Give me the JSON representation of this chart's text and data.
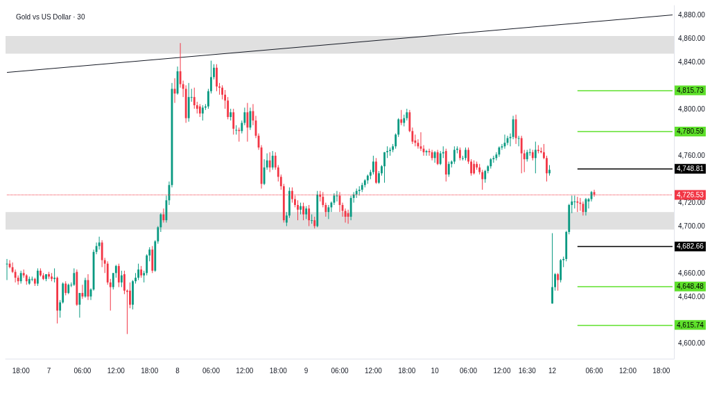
{
  "chart_data": {
    "type": "candlestick",
    "title": "Gold vs US Dollar · 30",
    "categories": [
      null,
      null,
      null,
      null,
      null,
      "18:00",
      null,
      null,
      null,
      null,
      null,
      null,
      null,
      null,
      null,
      "7",
      null,
      null,
      null,
      null,
      null,
      null,
      null,
      null,
      null,
      null,
      null,
      "06:00",
      null,
      null,
      null,
      null,
      null,
      null,
      null,
      null,
      null,
      null,
      null,
      "12:00",
      null,
      null,
      null,
      null,
      null,
      null,
      null,
      null,
      null,
      null,
      null,
      "18:00",
      null,
      null,
      null,
      null,
      null,
      null,
      null,
      null,
      null,
      "8",
      null,
      null,
      null,
      null,
      null,
      null,
      null,
      null,
      null,
      null,
      null,
      "06:00",
      null,
      null,
      null,
      null,
      null,
      null,
      null,
      null,
      null,
      null,
      null,
      "12:00",
      null,
      null,
      null,
      null,
      null,
      null,
      null,
      null,
      null,
      null,
      null,
      "18:00",
      null,
      null,
      null,
      null,
      null,
      null,
      null,
      null,
      null,
      "9",
      null,
      null,
      null,
      null,
      null,
      null,
      null,
      null,
      null,
      null,
      null,
      "06:00",
      null,
      null,
      null,
      null,
      null,
      null,
      null,
      null,
      null,
      null,
      null,
      "12:00",
      null,
      null,
      null,
      null,
      null,
      null,
      null,
      null,
      null,
      null,
      null,
      "18:00",
      null,
      null,
      null,
      null,
      null,
      null,
      null,
      null,
      null,
      "10",
      null,
      null,
      null,
      null,
      null,
      null,
      null,
      null,
      null,
      null,
      null,
      "06:00",
      null,
      null,
      null,
      null,
      null,
      null,
      null,
      null,
      null,
      null,
      null,
      "12:00",
      null,
      null,
      null,
      null,
      null,
      null,
      null,
      null,
      "16:30",
      null,
      null,
      null,
      null,
      null,
      null,
      null,
      null,
      "12",
      null,
      null,
      null,
      null,
      null,
      null,
      null,
      null,
      null,
      null,
      null,
      null,
      null,
      null,
      "06:00",
      null,
      null,
      null,
      null,
      null,
      null,
      null,
      null,
      null,
      null,
      null,
      "12:00",
      null,
      null,
      null,
      null,
      null,
      null,
      null,
      null,
      null,
      null,
      null,
      "18:00",
      null,
      null,
      null,
      null
    ],
    "ohlc": [
      [
        4668,
        4672,
        4654,
        4668
      ],
      [
        4668,
        4671,
        4664,
        4665
      ],
      [
        4665,
        4669,
        4660,
        4661
      ],
      [
        4661,
        4663,
        4652,
        4656
      ],
      [
        4656,
        4658,
        4650,
        4653
      ],
      [
        4653,
        4662,
        4651,
        4660
      ],
      [
        4660,
        4663,
        4656,
        4658
      ],
      [
        4658,
        4659,
        4650,
        4653
      ],
      [
        4651,
        4657,
        4650,
        4655
      ],
      [
        4655,
        4657,
        4653,
        4655
      ],
      [
        4655,
        4656,
        4649,
        4651
      ],
      [
        4651,
        4664,
        4649,
        4662
      ],
      [
        4662,
        4664,
        4657,
        4658
      ],
      [
        4658,
        4660,
        4654,
        4655
      ],
      [
        4655,
        4659,
        4653,
        4659
      ],
      [
        4659,
        4661,
        4655,
        4657
      ],
      [
        4657,
        4660,
        4653,
        4655
      ],
      [
        4655,
        4664,
        4652,
        4656
      ],
      [
        4656,
        4657,
        4617,
        4628
      ],
      [
        4628,
        4637,
        4622,
        4635
      ],
      [
        4635,
        4652,
        4634,
        4651
      ],
      [
        4651,
        4653,
        4641,
        4643
      ],
      [
        4643,
        4651,
        4642,
        4650
      ],
      [
        4650,
        4652,
        4648,
        4650
      ],
      [
        4650,
        4664,
        4649,
        4660
      ],
      [
        4661,
        4663,
        4632,
        4633
      ],
      [
        4633,
        4643,
        4622,
        4643
      ],
      [
        4643,
        4650,
        4638,
        4640
      ],
      [
        4640,
        4656,
        4639,
        4654
      ],
      [
        4654,
        4659,
        4637,
        4640
      ],
      [
        4640,
        4647,
        4637,
        4646
      ],
      [
        4646,
        4680,
        4645,
        4678
      ],
      [
        4678,
        4686,
        4676,
        4683
      ],
      [
        4683,
        4691,
        4680,
        4686
      ],
      [
        4686,
        4688,
        4665,
        4671
      ],
      [
        4671,
        4673,
        4660,
        4668
      ],
      [
        4668,
        4670,
        4650,
        4652
      ],
      [
        4652,
        4655,
        4628,
        4648
      ],
      [
        4648,
        4660,
        4646,
        4660
      ],
      [
        4660,
        4667,
        4656,
        4666
      ],
      [
        4666,
        4668,
        4648,
        4652
      ],
      [
        4652,
        4662,
        4648,
        4658
      ],
      [
        4659,
        4662,
        4642,
        4645
      ],
      [
        4645,
        4646,
        4608,
        4644
      ],
      [
        4645,
        4652,
        4630,
        4633
      ],
      [
        4633,
        4654,
        4629,
        4653
      ],
      [
        4653,
        4660,
        4651,
        4656
      ],
      [
        4656,
        4668,
        4654,
        4663
      ],
      [
        4663,
        4666,
        4656,
        4658
      ],
      [
        4658,
        4662,
        4652,
        4660
      ],
      [
        4660,
        4676,
        4658,
        4675
      ],
      [
        4675,
        4682,
        4670,
        4680
      ],
      [
        4680,
        4683,
        4660,
        4662
      ],
      [
        4662,
        4688,
        4661,
        4687
      ],
      [
        4687,
        4700,
        4685,
        4699
      ],
      [
        4699,
        4711,
        4695,
        4710
      ],
      [
        4710,
        4715,
        4703,
        4705
      ],
      [
        4705,
        4726,
        4703,
        4722
      ],
      [
        4722,
        4738,
        4718,
        4735
      ],
      [
        4735,
        4822,
        4733,
        4817
      ],
      [
        4817,
        4826,
        4805,
        4813
      ],
      [
        4813,
        4836,
        4812,
        4832
      ],
      [
        4832,
        4856,
        4818,
        4821
      ],
      [
        4821,
        4824,
        4810,
        4817
      ],
      [
        4817,
        4820,
        4788,
        4792
      ],
      [
        4792,
        4822,
        4789,
        4810
      ],
      [
        4810,
        4817,
        4806,
        4810
      ],
      [
        4810,
        4818,
        4800,
        4803
      ],
      [
        4803,
        4806,
        4796,
        4800
      ],
      [
        4802,
        4804,
        4793,
        4796
      ],
      [
        4796,
        4803,
        4790,
        4801
      ],
      [
        4801,
        4804,
        4799,
        4802
      ],
      [
        4802,
        4817,
        4800,
        4815
      ],
      [
        4815,
        4841,
        4813,
        4827
      ],
      [
        4827,
        4838,
        4825,
        4835
      ],
      [
        4835,
        4838,
        4815,
        4819
      ],
      [
        4819,
        4822,
        4812,
        4818
      ],
      [
        4818,
        4820,
        4808,
        4812
      ],
      [
        4812,
        4816,
        4800,
        4807
      ],
      [
        4807,
        4810,
        4791,
        4793
      ],
      [
        4793,
        4800,
        4790,
        4797
      ],
      [
        4797,
        4800,
        4778,
        4783
      ],
      [
        4782,
        4786,
        4778,
        4782
      ],
      [
        4782,
        4784,
        4772,
        4781
      ],
      [
        4781,
        4790,
        4779,
        4788
      ],
      [
        4788,
        4801,
        4786,
        4797
      ],
      [
        4797,
        4805,
        4772,
        4784
      ],
      [
        4784,
        4801,
        4782,
        4798
      ],
      [
        4798,
        4804,
        4786,
        4790
      ],
      [
        4790,
        4794,
        4775,
        4777
      ],
      [
        4777,
        4779,
        4765,
        4767
      ],
      [
        4767,
        4769,
        4732,
        4736
      ],
      [
        4736,
        4757,
        4735,
        4750
      ],
      [
        4750,
        4762,
        4748,
        4756
      ],
      [
        4756,
        4763,
        4746,
        4750
      ],
      [
        4750,
        4764,
        4748,
        4760
      ],
      [
        4760,
        4763,
        4748,
        4750
      ],
      [
        4750,
        4752,
        4738,
        4742
      ],
      [
        4742,
        4744,
        4731,
        4734
      ],
      [
        4734,
        4736,
        4703,
        4705
      ],
      [
        4703,
        4712,
        4700,
        4709
      ],
      [
        4709,
        4733,
        4707,
        4730
      ],
      [
        4730,
        4733,
        4720,
        4723
      ],
      [
        4723,
        4726,
        4716,
        4718
      ],
      [
        4718,
        4722,
        4705,
        4714
      ],
      [
        4714,
        4720,
        4710,
        4717
      ],
      [
        4717,
        4720,
        4705,
        4710
      ],
      [
        4710,
        4717,
        4706,
        4715
      ],
      [
        4715,
        4718,
        4700,
        4705
      ],
      [
        4705,
        4710,
        4702,
        4705
      ],
      [
        4705,
        4708,
        4698,
        4700
      ],
      [
        4700,
        4730,
        4699,
        4727
      ],
      [
        4727,
        4730,
        4721,
        4725
      ],
      [
        4725,
        4729,
        4716,
        4718
      ],
      [
        4718,
        4720,
        4708,
        4712
      ],
      [
        4712,
        4718,
        4706,
        4716
      ],
      [
        4716,
        4721,
        4712,
        4720
      ],
      [
        4720,
        4728,
        4718,
        4726
      ],
      [
        4726,
        4730,
        4721,
        4726
      ],
      [
        4726,
        4729,
        4712,
        4718
      ],
      [
        4718,
        4720,
        4708,
        4713
      ],
      [
        4713,
        4715,
        4703,
        4708
      ],
      [
        4711,
        4714,
        4702,
        4708
      ],
      [
        4708,
        4726,
        4705,
        4724
      ],
      [
        4724,
        4729,
        4720,
        4727
      ],
      [
        4727,
        4732,
        4724,
        4730
      ],
      [
        4730,
        4734,
        4726,
        4731
      ],
      [
        4731,
        4737,
        4729,
        4735
      ],
      [
        4735,
        4740,
        4733,
        4739
      ],
      [
        4739,
        4744,
        4736,
        4743
      ],
      [
        4743,
        4748,
        4740,
        4746
      ],
      [
        4746,
        4760,
        4744,
        4755
      ],
      [
        4755,
        4758,
        4736,
        4737
      ],
      [
        4737,
        4747,
        4736,
        4745
      ],
      [
        4745,
        4752,
        4743,
        4751
      ],
      [
        4751,
        4763,
        4737,
        4763
      ],
      [
        4763,
        4768,
        4758,
        4764
      ],
      [
        4764,
        4767,
        4760,
        4765
      ],
      [
        4765,
        4770,
        4763,
        4768
      ],
      [
        4768,
        4779,
        4766,
        4778
      ],
      [
        4778,
        4792,
        4776,
        4791
      ],
      [
        4791,
        4799,
        4786,
        4788
      ],
      [
        4788,
        4795,
        4785,
        4792
      ],
      [
        4792,
        4800,
        4790,
        4797
      ],
      [
        4797,
        4799,
        4780,
        4781
      ],
      [
        4781,
        4784,
        4770,
        4772
      ],
      [
        4773,
        4778,
        4768,
        4771
      ],
      [
        4771,
        4774,
        4766,
        4768
      ],
      [
        4768,
        4780,
        4764,
        4766
      ],
      [
        4766,
        4769,
        4760,
        4763
      ],
      [
        4763,
        4765,
        4760,
        4764
      ],
      [
        4764,
        4766,
        4760,
        4763
      ],
      [
        4763,
        4765,
        4756,
        4758
      ],
      [
        4758,
        4764,
        4754,
        4763
      ],
      [
        4763,
        4765,
        4752,
        4753
      ],
      [
        4753,
        4764,
        4752,
        4762
      ],
      [
        4762,
        4768,
        4758,
        4763
      ],
      [
        4764,
        4766,
        4738,
        4744
      ],
      [
        4744,
        4755,
        4742,
        4753
      ],
      [
        4753,
        4756,
        4750,
        4755
      ],
      [
        4755,
        4768,
        4753,
        4765
      ],
      [
        4765,
        4768,
        4762,
        4766
      ],
      [
        4765,
        4767,
        4756,
        4758
      ],
      [
        4758,
        4760,
        4756,
        4758
      ],
      [
        4758,
        4767,
        4756,
        4765
      ],
      [
        4765,
        4767,
        4753,
        4755
      ],
      [
        4755,
        4757,
        4743,
        4745
      ],
      [
        4753,
        4756,
        4744,
        4745
      ],
      [
        4753,
        4755,
        4748,
        4750
      ],
      [
        4750,
        4753,
        4744,
        4746
      ],
      [
        4746,
        4748,
        4731,
        4740
      ],
      [
        4740,
        4748,
        4737,
        4747
      ],
      [
        4747,
        4752,
        4745,
        4751
      ],
      [
        4751,
        4758,
        4749,
        4757
      ],
      [
        4757,
        4760,
        4754,
        4758
      ],
      [
        4758,
        4763,
        4756,
        4761
      ],
      [
        4761,
        4768,
        4759,
        4767
      ],
      [
        4767,
        4770,
        4765,
        4768
      ],
      [
        4768,
        4778,
        4766,
        4771
      ],
      [
        4771,
        4777,
        4769,
        4775
      ],
      [
        4775,
        4779,
        4768,
        4776
      ],
      [
        4776,
        4794,
        4774,
        4791
      ],
      [
        4791,
        4795,
        4770,
        4775
      ],
      [
        4775,
        4777,
        4768,
        4775
      ],
      [
        4775,
        4777,
        4745,
        4762
      ],
      [
        4762,
        4765,
        4746,
        4757
      ],
      [
        4757,
        4765,
        4755,
        4763
      ],
      [
        4763,
        4766,
        4760,
        4763
      ],
      [
        4763,
        4765,
        4756,
        4758
      ],
      [
        4758,
        4772,
        4745,
        4765
      ],
      [
        4765,
        4769,
        4762,
        4764
      ],
      [
        4764,
        4767,
        4762,
        4763
      ],
      [
        4763,
        4770,
        4757,
        4758
      ],
      [
        4758,
        4760,
        4738,
        4745
      ],
      [
        4745,
        4752,
        4743,
        4748
      ],
      [
        4634,
        4694,
        4634,
        4648
      ],
      [
        4648,
        4660,
        4645,
        4659
      ],
      [
        4659,
        4660,
        4645,
        4654
      ],
      [
        4654,
        4672,
        4652,
        4671
      ],
      [
        4671,
        4674,
        4665,
        4672
      ],
      [
        4672,
        4696,
        4670,
        4695
      ],
      [
        4695,
        4719,
        4693,
        4718
      ],
      [
        4718,
        4726,
        4711,
        4721
      ],
      [
        4721,
        4726,
        4715,
        4721
      ],
      [
        4721,
        4725,
        4712,
        4720
      ],
      [
        4720,
        4724,
        4713,
        4719
      ],
      [
        4719,
        4721,
        4709,
        4712
      ],
      [
        4712,
        4724,
        4709,
        4723
      ],
      [
        4721,
        4724,
        4715,
        4723
      ],
      [
        4723,
        4730,
        4721,
        4729
      ],
      [
        4729,
        4731,
        4725,
        4727
      ],
      null,
      null,
      null,
      null,
      null,
      null,
      null,
      null,
      null,
      null,
      null,
      null,
      null,
      null,
      null,
      null,
      null,
      null,
      null,
      null,
      null,
      null,
      null,
      null,
      null,
      null,
      null,
      null
    ],
    "series": [
      {
        "type": "line",
        "color": "#131722",
        "values": [
          4831,
          null,
          null,
          null,
          null,
          null,
          null,
          null,
          null,
          null,
          null,
          null,
          null,
          null,
          null,
          null,
          null,
          null,
          null,
          null,
          null,
          null,
          null,
          null,
          null,
          null,
          null,
          null,
          null,
          null,
          null,
          null,
          null,
          null,
          null,
          null,
          null,
          null,
          null,
          null,
          null,
          null,
          null,
          null,
          null,
          null,
          null,
          null,
          null,
          null,
          null,
          null,
          null,
          null,
          null,
          null,
          null,
          null,
          null,
          null,
          null,
          null,
          null,
          null,
          null,
          null,
          null,
          null,
          null,
          null,
          null,
          null,
          null,
          null,
          null,
          null,
          null,
          null,
          null,
          null,
          null,
          null,
          null,
          null,
          null,
          null,
          null,
          null,
          null,
          null,
          null,
          null,
          null,
          null,
          null,
          null,
          null,
          null,
          null,
          null,
          null,
          null,
          null,
          null,
          null,
          null,
          null,
          null,
          null,
          null,
          null,
          null,
          null,
          null,
          null,
          null,
          null,
          null,
          null,
          null,
          null,
          null,
          null,
          null,
          null,
          null,
          null,
          null,
          null,
          null,
          null,
          null,
          null,
          null,
          null,
          null,
          null,
          null,
          null,
          null,
          null,
          null,
          null,
          null,
          null,
          null,
          null,
          null,
          null,
          null,
          null,
          null,
          null,
          null,
          null,
          null,
          null,
          null,
          null,
          null,
          null,
          null,
          null,
          null,
          null,
          null,
          null,
          null,
          null,
          null,
          null,
          null,
          null,
          null,
          null,
          null,
          null,
          null,
          null,
          null,
          null,
          null,
          null,
          null,
          null,
          null,
          null,
          null,
          null,
          null,
          null,
          null,
          null,
          null,
          null,
          null,
          null,
          null,
          null,
          null,
          null,
          null,
          null,
          null,
          null,
          null,
          null,
          null,
          null,
          null,
          null,
          null,
          null,
          null,
          null,
          null,
          null,
          null,
          null,
          null,
          null,
          null,
          null,
          null,
          null,
          null,
          null,
          null,
          null,
          null,
          null,
          null,
          null,
          null,
          null,
          null,
          null,
          null,
          4880
        ]
      }
    ],
    "ylim": [
      4587,
      4888
    ],
    "yticks": [
      {
        "value": 4600,
        "label": "4,600.00"
      },
      {
        "value": 4640,
        "label": "4,640.00"
      },
      {
        "value": 4660,
        "label": "4,660.00"
      },
      {
        "value": 4700,
        "label": "4,700.00"
      },
      {
        "value": 4720,
        "label": "4,720.00"
      },
      {
        "value": 4760,
        "label": "4,760.00"
      },
      {
        "value": 4800,
        "label": "4,800.00"
      },
      {
        "value": 4840,
        "label": "4,840.00"
      },
      {
        "value": 4860,
        "label": "4,860.00"
      },
      {
        "value": 4880,
        "label": "4,880.00"
      }
    ],
    "ref_lines": [
      {
        "axis": "y",
        "value": 4815.73,
        "label": "4,815.73",
        "color": "#5ee02b"
      },
      {
        "axis": "y",
        "value": 4780.59,
        "label": "4,780.59",
        "color": "#5ee02b"
      },
      {
        "axis": "y",
        "value": 4748.81,
        "label": "4,748.81",
        "color": "#000000"
      },
      {
        "axis": "y",
        "value": 4726.53,
        "label": "4,726.53",
        "color": "#f23645",
        "line_style": "dotted"
      },
      {
        "axis": "y",
        "value": 4682.66,
        "label": "4,682.66",
        "color": "#000000"
      },
      {
        "axis": "y",
        "value": 4648.48,
        "label": "4,648.48",
        "color": "#5ee02b"
      },
      {
        "axis": "y",
        "value": 4615.74,
        "label": "4,615.74",
        "color": "#5ee02b"
      }
    ],
    "bands": [
      {
        "axis": "y",
        "from": 4847,
        "to": 4862,
        "color": "#e0e0e0"
      },
      {
        "axis": "y",
        "from": 4697,
        "to": 4712,
        "color": "#e0e0e0"
      }
    ],
    "grid": false
  }
}
